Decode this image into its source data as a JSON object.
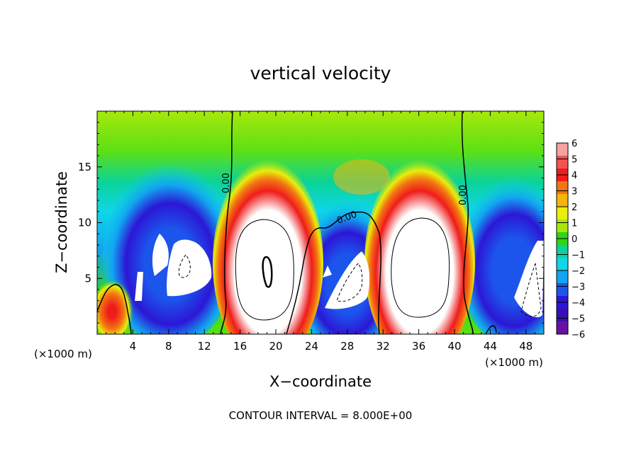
{
  "chart_data": {
    "type": "heatmap",
    "title": "vertical velocity",
    "xlabel": "X−coordinate",
    "ylabel": "Z−coordinate",
    "x_unit": "(×1000 m)",
    "x_unit_right": "(×1000 m)",
    "xlim": [
      0,
      50
    ],
    "ylim": [
      0,
      20
    ],
    "x_ticks": [
      4,
      8,
      12,
      16,
      20,
      24,
      28,
      32,
      36,
      40,
      44,
      48
    ],
    "x_tick_labels": [
      "4",
      "8",
      "12",
      "16",
      "20",
      "24",
      "28",
      "32",
      "36",
      "40",
      "44",
      "48"
    ],
    "y_ticks": [
      5,
      10,
      15
    ],
    "y_tick_labels": [
      "5",
      "10",
      "15"
    ],
    "colorbar": {
      "levels": [
        6,
        5,
        4,
        3,
        2,
        1,
        0,
        -1,
        -2,
        -3,
        -4,
        -5,
        -6
      ],
      "labels": [
        "6",
        "5",
        "4",
        "3",
        "2",
        "1",
        "0",
        "−1",
        "−2",
        "−3",
        "−4",
        "−5",
        "−6"
      ],
      "colors": [
        "#f7a1a1",
        "#f25252",
        "#ef1c1c",
        "#f27412",
        "#f3b70c",
        "#eaee0b",
        "#a7e80c",
        "#2fd613",
        "#0ad39a",
        "#0fd6e8",
        "#12a4f0",
        "#1c55ec",
        "#2c17d6",
        "#3a0eb5",
        "#6a11a5"
      ],
      "saturation_color": "#ffffff"
    },
    "field_features": [
      {
        "kind": "updraft",
        "x_center": 19.5,
        "z_top": 12.0,
        "peak": 8
      },
      {
        "kind": "updraft",
        "x_center": 35.5,
        "z_top": 13.0,
        "peak": 8
      },
      {
        "kind": "downdraft",
        "x_center": 9.5,
        "z_top": 11.0,
        "peak": -8
      },
      {
        "kind": "downdraft",
        "x_center": 27.5,
        "z_top": 10.0,
        "peak": -8
      },
      {
        "kind": "downdraft",
        "x_center": 47.5,
        "z_top": 10.0,
        "peak": -8
      },
      {
        "kind": "updraft",
        "x_center": 1.5,
        "z_top": 4.0,
        "peak": 5
      }
    ],
    "contour_labels": [
      "0.00",
      "0.00",
      "0.00"
    ],
    "contour_interval_text": "CONTOUR INTERVAL = 8.000E+00"
  }
}
